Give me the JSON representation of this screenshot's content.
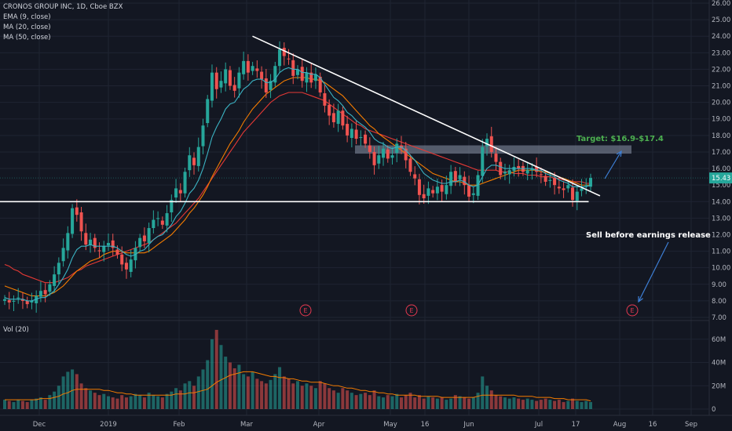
{
  "legend": {
    "title": "CRONOS GROUP INC, 1D, Cboe BZX",
    "ema": "EMA (9, close)",
    "ma20": "MA (20, close)",
    "ma50": "MA (50, close)",
    "vol": "Vol (20)"
  },
  "colors": {
    "background": "#131722",
    "up": "#26a69a",
    "down": "#ef5350",
    "ema": "#3bb3c3",
    "ma20": "#f57c00",
    "ma50": "#e53935",
    "trendline": "#ffffff",
    "target_zone": "#8a93a8",
    "annotation": "#4caf50",
    "arrow": "#3d7fd6"
  },
  "annotations": {
    "target": "Target: $16.9-$17.4",
    "sell": "Sell before earnings release",
    "earnings_marker": "E"
  },
  "chart_data": {
    "type": "candlestick",
    "price_axis": {
      "range": [
        7.0,
        26.0
      ],
      "ticks": [
        "26.00",
        "25.00",
        "24.00",
        "23.00",
        "22.00",
        "21.00",
        "20.00",
        "19.00",
        "18.00",
        "17.00",
        "16.00",
        "15.00",
        "14.00",
        "13.00",
        "12.00",
        "11.00",
        "10.00",
        "9.00",
        "8.00",
        "7.00"
      ]
    },
    "current_price": "15.43",
    "volume_axis": {
      "ticks": [
        "60M",
        "40M",
        "20M",
        "0"
      ],
      "range": [
        0,
        72
      ]
    },
    "x_axis_labels": [
      "Dec",
      "2019",
      "Feb",
      "Mar",
      "Apr",
      "May",
      "16",
      "Jun",
      "Jul",
      "17",
      "Aug",
      "16",
      "Sep"
    ],
    "series": [
      {
        "name": "price",
        "close": [
          8.1,
          7.9,
          8.0,
          8.2,
          8.0,
          7.8,
          8.0,
          8.3,
          8.6,
          8.4,
          9.0,
          9.6,
          10.3,
          11.2,
          12.1,
          13.6,
          13.2,
          12.2,
          11.4,
          11.7,
          11.2,
          11.0,
          11.3,
          11.5,
          11.2,
          10.8,
          10.2,
          9.9,
          10.5,
          11.2,
          11.8,
          11.6,
          12.4,
          12.9,
          13.0,
          12.6,
          13.3,
          14.1,
          14.8,
          14.5,
          15.8,
          16.8,
          16.2,
          17.3,
          18.6,
          20.2,
          21.8,
          20.8,
          21.3,
          22.0,
          21.0,
          20.7,
          21.8,
          22.5,
          21.8,
          22.2,
          21.9,
          21.4,
          20.6,
          21.3,
          22.2,
          23.2,
          22.8,
          22.6,
          21.6,
          22.0,
          21.3,
          21.8,
          21.2,
          21.7,
          20.6,
          19.8,
          19.2,
          18.8,
          19.5,
          18.6,
          18.0,
          18.4,
          17.8,
          17.9,
          17.5,
          17.0,
          16.2,
          16.8,
          17.2,
          16.6,
          16.8,
          17.5,
          17.2,
          16.5,
          15.8,
          15.4,
          14.4,
          14.2,
          14.8,
          14.5,
          14.9,
          14.6,
          15.0,
          15.8,
          15.2,
          15.6,
          15.0,
          14.3,
          14.5,
          15.6,
          17.3,
          17.8,
          17.0,
          16.4,
          15.6,
          15.8,
          15.9,
          16.1,
          16.0,
          15.8,
          15.9,
          16.0,
          15.8,
          15.6,
          15.2,
          15.3,
          15.0,
          14.8,
          14.7,
          15.0,
          14.1,
          14.6,
          14.8,
          15.0,
          15.43
        ]
      },
      {
        "name": "EMA (9, close)",
        "values": [
          8.2,
          8.1,
          8.1,
          8.1,
          8.1,
          8.0,
          8.0,
          8.1,
          8.2,
          8.2,
          8.4,
          8.6,
          9.0,
          9.4,
          9.9,
          10.6,
          11.1,
          11.3,
          11.3,
          11.4,
          11.3,
          11.3,
          11.3,
          11.3,
          11.3,
          11.2,
          11.0,
          10.8,
          10.7,
          10.8,
          11.0,
          11.1,
          11.4,
          11.7,
          11.9,
          12.0,
          12.3,
          12.6,
          13.1,
          13.4,
          13.9,
          14.5,
          14.8,
          15.3,
          16.0,
          16.9,
          17.9,
          18.5,
          19.0,
          19.6,
          19.9,
          20.0,
          20.4,
          20.8,
          21.0,
          21.3,
          21.4,
          21.4,
          21.2,
          21.2,
          21.4,
          21.8,
          22.0,
          22.1,
          22.0,
          22.0,
          21.8,
          21.8,
          21.7,
          21.7,
          21.5,
          21.1,
          20.7,
          20.3,
          20.1,
          19.8,
          19.4,
          19.2,
          18.9,
          18.7,
          18.5,
          18.2,
          17.8,
          17.6,
          17.5,
          17.3,
          17.2,
          17.3,
          17.3,
          17.1,
          16.8,
          16.5,
          16.1,
          15.7,
          15.5,
          15.3,
          15.2,
          15.1,
          15.1,
          15.2,
          15.2,
          15.3,
          15.2,
          15.0,
          14.9,
          15.0,
          15.5,
          16.0,
          16.2,
          16.2,
          16.1,
          16.0,
          16.0,
          16.0,
          16.0,
          16.0,
          16.0,
          16.0,
          15.9,
          15.9,
          15.7,
          15.6,
          15.5,
          15.3,
          15.2,
          15.1,
          14.9,
          14.9,
          14.9,
          14.9,
          15.0
        ]
      },
      {
        "name": "MA (20, close)",
        "values": [
          8.9,
          8.8,
          8.7,
          8.6,
          8.5,
          8.4,
          8.3,
          8.3,
          8.3,
          8.3,
          8.4,
          8.5,
          8.7,
          8.9,
          9.2,
          9.5,
          9.8,
          10.0,
          10.2,
          10.4,
          10.5,
          10.6,
          10.8,
          10.9,
          11.0,
          11.0,
          11.0,
          10.9,
          10.9,
          10.9,
          10.9,
          10.9,
          11.0,
          11.2,
          11.4,
          11.6,
          11.8,
          12.0,
          12.3,
          12.6,
          12.9,
          13.3,
          13.6,
          14.0,
          14.4,
          14.9,
          15.5,
          16.0,
          16.5,
          17.0,
          17.5,
          17.9,
          18.3,
          18.8,
          19.2,
          19.6,
          19.9,
          20.2,
          20.5,
          20.7,
          20.9,
          21.1,
          21.3,
          21.4,
          21.5,
          21.5,
          21.5,
          21.5,
          21.4,
          21.4,
          21.3,
          21.2,
          21.0,
          20.8,
          20.6,
          20.4,
          20.1,
          19.8,
          19.5,
          19.2,
          18.9,
          18.6,
          18.4,
          18.1,
          17.9,
          17.7,
          17.5,
          17.3,
          17.1,
          16.9,
          16.7,
          16.5,
          16.3,
          16.1,
          15.9,
          15.7,
          15.6,
          15.5,
          15.4,
          15.3,
          15.2,
          15.2,
          15.1,
          15.0,
          15.0,
          15.0,
          15.1,
          15.2,
          15.3,
          15.4,
          15.5,
          15.6,
          15.7,
          15.8,
          15.9,
          15.9,
          15.9,
          15.9,
          15.9,
          15.8,
          15.8,
          15.7,
          15.6,
          15.5,
          15.4,
          15.3,
          15.2,
          15.1,
          15.0,
          15.0,
          15.0
        ]
      },
      {
        "name": "MA (50, close)",
        "values": [
          10.2,
          10.1,
          9.9,
          9.8,
          9.6,
          9.5,
          9.4,
          9.3,
          9.2,
          9.1,
          9.1,
          9.1,
          9.2,
          9.3,
          9.4,
          9.6,
          9.8,
          9.9,
          10.1,
          10.2,
          10.3,
          10.4,
          10.5,
          10.6,
          10.7,
          10.8,
          10.9,
          11.0,
          11.1,
          11.2,
          11.3,
          11.4,
          11.5,
          11.7,
          11.9,
          12.1,
          12.3,
          12.5,
          12.7,
          13.0,
          13.3,
          13.6,
          13.9,
          14.2,
          14.6,
          15.0,
          15.4,
          15.8,
          16.2,
          16.6,
          17.0,
          17.4,
          17.8,
          18.2,
          18.5,
          18.8,
          19.1,
          19.4,
          19.7,
          20.0,
          20.2,
          20.4,
          20.5,
          20.6,
          20.6,
          20.6,
          20.6,
          20.5,
          20.4,
          20.3,
          20.2,
          20.1,
          19.9,
          19.7,
          19.5,
          19.3,
          19.1,
          18.9,
          18.7,
          18.6,
          18.4,
          18.3,
          18.2,
          18.1,
          18.0,
          17.9,
          17.8,
          17.7,
          17.6,
          17.5,
          17.4,
          17.3,
          17.2,
          17.1,
          17.0,
          16.9,
          16.8,
          16.7,
          16.6,
          16.5,
          16.4,
          16.3,
          16.2,
          16.1,
          16.0,
          15.9,
          15.9,
          15.9,
          15.9,
          15.9,
          15.8,
          15.8,
          15.8,
          15.7,
          15.7,
          15.7,
          15.6,
          15.6,
          15.6,
          15.5,
          15.5,
          15.5,
          15.4,
          15.4,
          15.3,
          15.3,
          15.2,
          15.2,
          15.2,
          15.1,
          15.1
        ]
      },
      {
        "name": "Vol (20)",
        "values": [
          8,
          7,
          6,
          8,
          7,
          6,
          8,
          9,
          10,
          8,
          12,
          15,
          20,
          28,
          32,
          34,
          30,
          22,
          18,
          16,
          14,
          12,
          13,
          11,
          10,
          9,
          12,
          10,
          11,
          13,
          12,
          10,
          14,
          12,
          11,
          10,
          13,
          15,
          18,
          16,
          22,
          24,
          20,
          28,
          34,
          42,
          60,
          68,
          55,
          45,
          40,
          35,
          38,
          30,
          28,
          32,
          26,
          24,
          22,
          25,
          30,
          36,
          28,
          26,
          22,
          24,
          20,
          22,
          20,
          18,
          24,
          22,
          18,
          16,
          14,
          18,
          16,
          14,
          12,
          13,
          14,
          12,
          16,
          11,
          10,
          12,
          11,
          13,
          10,
          12,
          14,
          10,
          12,
          9,
          11,
          10,
          9,
          10,
          8,
          9,
          12,
          11,
          10,
          9,
          10,
          14,
          28,
          20,
          16,
          12,
          11,
          10,
          9,
          10,
          9,
          8,
          9,
          8,
          7,
          8,
          9,
          8,
          7,
          8,
          6,
          7,
          9,
          7,
          6,
          7,
          6
        ]
      },
      {
        "name": "Vol MA",
        "values": [
          8,
          8,
          8,
          8,
          8,
          8,
          8,
          8,
          9,
          9,
          9,
          10,
          11,
          13,
          14,
          16,
          17,
          17,
          17,
          17,
          17,
          17,
          16,
          16,
          15,
          14,
          14,
          13,
          13,
          12,
          12,
          12,
          12,
          12,
          12,
          12,
          12,
          12,
          13,
          13,
          13,
          14,
          14,
          15,
          16,
          17,
          20,
          23,
          25,
          27,
          29,
          30,
          31,
          32,
          32,
          32,
          31,
          30,
          29,
          28,
          28,
          27,
          27,
          26,
          26,
          25,
          24,
          24,
          23,
          23,
          23,
          22,
          21,
          20,
          20,
          19,
          18,
          18,
          17,
          16,
          16,
          15,
          15,
          14,
          14,
          13,
          13,
          12,
          12,
          12,
          12,
          12,
          11,
          11,
          11,
          11,
          11,
          10,
          10,
          10,
          10,
          10,
          10,
          10,
          10,
          11,
          12,
          12,
          12,
          12,
          12,
          12,
          12,
          12,
          11,
          11,
          11,
          11,
          10,
          10,
          10,
          10,
          9,
          9,
          9,
          8,
          8,
          8,
          8,
          8,
          7
        ]
      }
    ],
    "trendlines": [
      {
        "name": "descending resistance",
        "from": [
          0.356,
          24.0
        ],
        "to": [
          0.846,
          14.35
        ]
      },
      {
        "name": "support",
        "from": [
          0.0,
          14.0
        ],
        "to": [
          0.83,
          14.0
        ]
      }
    ],
    "target_zone": {
      "from": 16.9,
      "to": 17.4
    }
  }
}
